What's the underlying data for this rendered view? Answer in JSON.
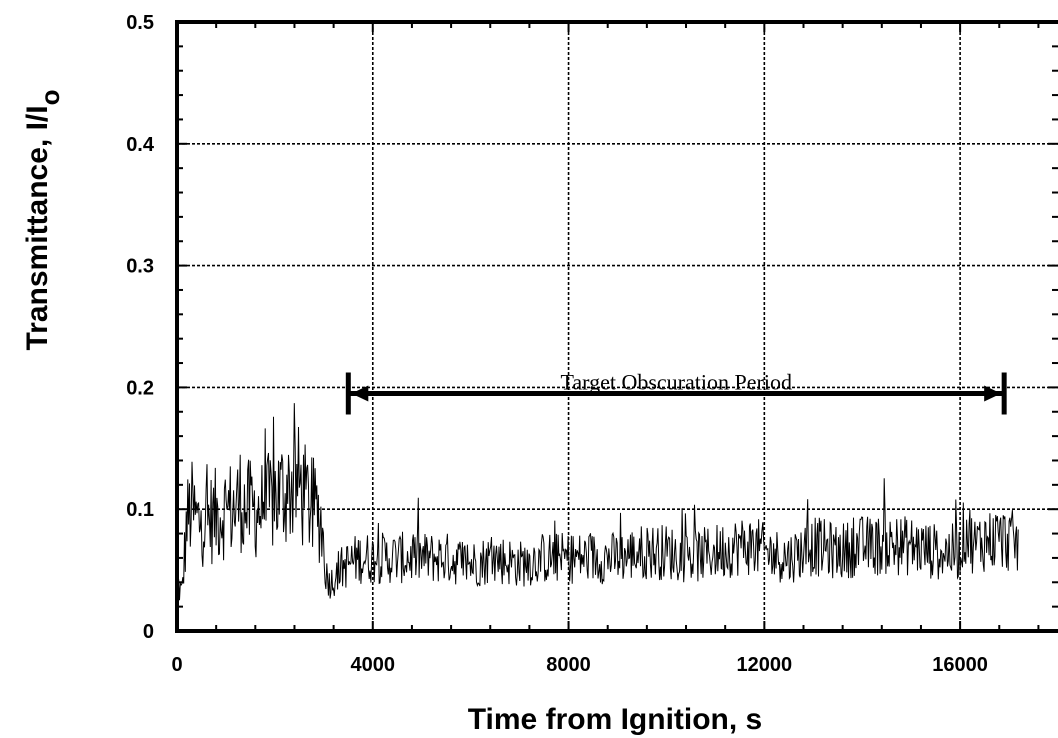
{
  "chart_data": {
    "type": "line",
    "xlabel": "Time from Ignition, s",
    "ylabel_main": "Transmittance,  I/I",
    "ylabel_sub": "o",
    "xlim": [
      0,
      18000
    ],
    "ylim": [
      0,
      0.5
    ],
    "x_ticks": [
      0,
      4000,
      8000,
      12000,
      16000
    ],
    "x_tick_labels": [
      "0",
      "4000",
      "8000",
      "12000",
      "16000"
    ],
    "y_ticks": [
      0,
      0.1,
      0.2,
      0.3,
      0.4,
      0.5
    ],
    "y_tick_labels": [
      "0",
      "0.1",
      "0.2",
      "0.3",
      "0.4",
      "0.5"
    ],
    "grid": true,
    "annotation": {
      "text": "Target Obscuration Period",
      "x_start": 3500,
      "x_end": 16900,
      "y": 0.195
    },
    "series": [
      {
        "x": [
          0,
          100,
          200,
          300,
          400,
          600,
          800,
          1000,
          1200,
          1300,
          1400,
          1600,
          1800,
          2000,
          2200,
          2400,
          2500,
          2600,
          2800,
          2950,
          3050,
          3150,
          3300,
          3500,
          3700,
          4000,
          4500,
          5000,
          5500,
          6000,
          6500,
          7000,
          7500,
          8000,
          8500,
          9000,
          9500,
          10000,
          10500,
          11000,
          11500,
          11800,
          12000,
          12500,
          13000,
          13500,
          14000,
          14500,
          15000,
          15500,
          16000,
          16100,
          16300,
          16500,
          16800,
          17000,
          17200
        ],
        "y": [
          0.04,
          0.03,
          0.09,
          0.1,
          0.09,
          0.09,
          0.095,
          0.1,
          0.1,
          0.11,
          0.1,
          0.1,
          0.1,
          0.11,
          0.115,
          0.12,
          0.12,
          0.11,
          0.1,
          0.09,
          0.045,
          0.04,
          0.05,
          0.055,
          0.06,
          0.06,
          0.06,
          0.06,
          0.06,
          0.055,
          0.06,
          0.055,
          0.06,
          0.06,
          0.06,
          0.06,
          0.065,
          0.065,
          0.06,
          0.065,
          0.07,
          0.07,
          0.065,
          0.06,
          0.07,
          0.065,
          0.07,
          0.07,
          0.07,
          0.065,
          0.065,
          0.085,
          0.07,
          0.075,
          0.075,
          0.075,
          0.07
        ]
      }
    ]
  }
}
